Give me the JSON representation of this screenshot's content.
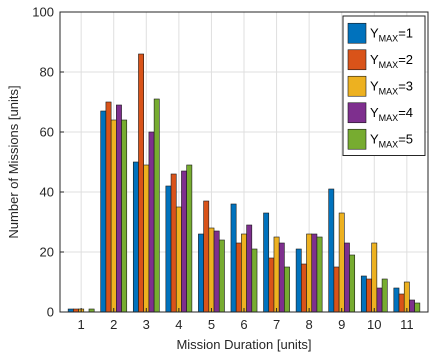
{
  "chart_data": {
    "type": "bar",
    "title": "",
    "xlabel": "Mission Duration [units]",
    "ylabel": "Number of Missions [units]",
    "categories": [
      "1",
      "2",
      "3",
      "4",
      "5",
      "6",
      "7",
      "8",
      "9",
      "10",
      "11"
    ],
    "ylim": [
      0,
      100
    ],
    "yticks": [
      "0",
      "20",
      "40",
      "60",
      "80",
      "100"
    ],
    "grid": true,
    "legend_position": "top-right",
    "series": [
      {
        "name": "=1",
        "legend_base": "Y",
        "legend_sub": "MAX",
        "legend_suffix": "=1",
        "color": "#0072BD",
        "values": [
          1,
          67,
          50,
          42,
          26,
          36,
          33,
          21,
          41,
          12,
          8
        ]
      },
      {
        "name": "=2",
        "legend_base": "Y",
        "legend_sub": "MAX",
        "legend_suffix": "=2",
        "color": "#D95319",
        "values": [
          1,
          70,
          86,
          46,
          37,
          23,
          18,
          16,
          15,
          11,
          6
        ]
      },
      {
        "name": "=3",
        "legend_base": "Y",
        "legend_sub": "MAX",
        "legend_suffix": "=3",
        "color": "#EDB120",
        "values": [
          1,
          64,
          49,
          35,
          28,
          26,
          25,
          26,
          33,
          23,
          10
        ]
      },
      {
        "name": "=4",
        "legend_base": "Y",
        "legend_sub": "MAX",
        "legend_suffix": "=4",
        "color": "#7E2F8E",
        "values": [
          0,
          69,
          60,
          47,
          27,
          29,
          23,
          26,
          23,
          8,
          4
        ]
      },
      {
        "name": "=5",
        "legend_base": "Y",
        "legend_sub": "MAX",
        "legend_suffix": "=5",
        "color": "#77AC30",
        "values": [
          1,
          64,
          71,
          49,
          24,
          21,
          15,
          25,
          19,
          11,
          3
        ]
      }
    ]
  }
}
